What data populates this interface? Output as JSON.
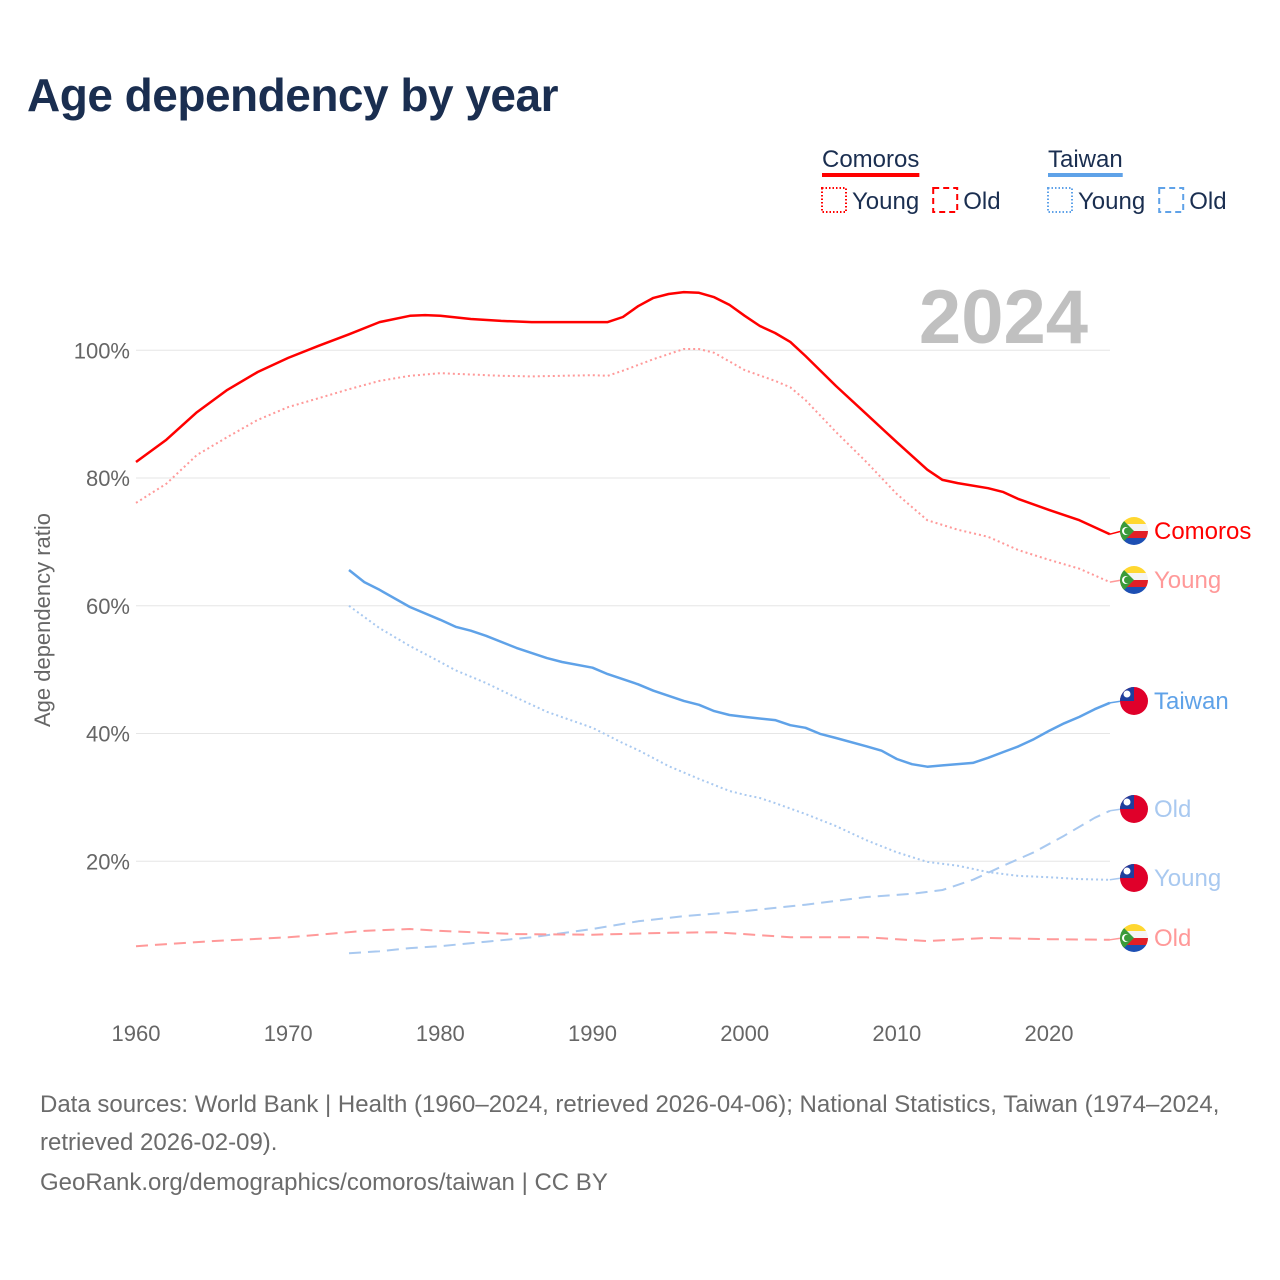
{
  "title": "Age dependency by year",
  "year_watermark": "2024",
  "legend": {
    "groups": [
      {
        "name": "Comoros",
        "color": "#ff0000",
        "light": "#ff9999",
        "items": [
          "Young",
          "Old"
        ]
      },
      {
        "name": "Taiwan",
        "color": "#5fa2e8",
        "light": "#a9c9f0",
        "items": [
          "Young",
          "Old"
        ]
      }
    ]
  },
  "chart_data": {
    "type": "line",
    "title": "Age dependency by year",
    "xlabel": "",
    "ylabel": "Age dependency ratio",
    "xlim": [
      1960,
      2024
    ],
    "ylim": [
      0,
      110
    ],
    "x_ticks": [
      "1960",
      "1970",
      "1980",
      "1990",
      "2000",
      "2010",
      "2020"
    ],
    "y_ticks": [
      {
        "v": 20,
        "label": "20%"
      },
      {
        "v": 40,
        "label": "40%"
      },
      {
        "v": 60,
        "label": "60%"
      },
      {
        "v": 80,
        "label": "80%"
      },
      {
        "v": 100,
        "label": "100%"
      }
    ],
    "grid": true,
    "series": [
      {
        "name": "Comoros",
        "end_label": "Comoros",
        "country": "comoros",
        "style": "solid",
        "color": "#ff0000",
        "points": [
          [
            1960,
            82.5
          ],
          [
            1962,
            86
          ],
          [
            1964,
            90.3
          ],
          [
            1966,
            93.8
          ],
          [
            1968,
            96.6
          ],
          [
            1970,
            98.8
          ],
          [
            1972,
            100.7
          ],
          [
            1974,
            102.5
          ],
          [
            1976,
            104.4
          ],
          [
            1978,
            105.4
          ],
          [
            1979,
            105.5
          ],
          [
            1980,
            105.4
          ],
          [
            1982,
            104.9
          ],
          [
            1984,
            104.6
          ],
          [
            1986,
            104.4
          ],
          [
            1991,
            104.4
          ],
          [
            1992,
            105.2
          ],
          [
            1993,
            106.9
          ],
          [
            1994,
            108.2
          ],
          [
            1995,
            108.8
          ],
          [
            1996,
            109.1
          ],
          [
            1997,
            109
          ],
          [
            1998,
            108.3
          ],
          [
            1999,
            107.1
          ],
          [
            2000,
            105.4
          ],
          [
            2001,
            103.8
          ],
          [
            2002,
            102.7
          ],
          [
            2003,
            101.3
          ],
          [
            2004,
            99.1
          ],
          [
            2006,
            94.4
          ],
          [
            2008,
            90.0
          ],
          [
            2010,
            85.6
          ],
          [
            2012,
            81.3
          ],
          [
            2013,
            79.7
          ],
          [
            2014,
            79.2
          ],
          [
            2016,
            78.4
          ],
          [
            2017,
            77.8
          ],
          [
            2018,
            76.7
          ],
          [
            2020,
            75.0
          ],
          [
            2022,
            73.4
          ],
          [
            2024,
            71.2
          ]
        ]
      },
      {
        "name": "Comoros Young",
        "end_label": "Young",
        "country": "comoros",
        "style": "dotted",
        "color": "#ff9999",
        "points": [
          [
            1960,
            76.1
          ],
          [
            1962,
            79.1
          ],
          [
            1964,
            83.6
          ],
          [
            1966,
            86.4
          ],
          [
            1968,
            89.1
          ],
          [
            1970,
            91.1
          ],
          [
            1972,
            92.5
          ],
          [
            1974,
            93.9
          ],
          [
            1976,
            95.2
          ],
          [
            1978,
            96.0
          ],
          [
            1980,
            96.4
          ],
          [
            1984,
            96.0
          ],
          [
            1986,
            95.9
          ],
          [
            1990,
            96.1
          ],
          [
            1991,
            96.0
          ],
          [
            1992,
            96.8
          ],
          [
            1994,
            98.6
          ],
          [
            1996,
            100.2
          ],
          [
            1997,
            100.2
          ],
          [
            1998,
            99.6
          ],
          [
            2000,
            96.9
          ],
          [
            2002,
            95.2
          ],
          [
            2003,
            94.2
          ],
          [
            2004,
            92.2
          ],
          [
            2006,
            87.2
          ],
          [
            2008,
            82.5
          ],
          [
            2010,
            77.5
          ],
          [
            2012,
            73.4
          ],
          [
            2014,
            71.9
          ],
          [
            2016,
            70.8
          ],
          [
            2018,
            68.7
          ],
          [
            2020,
            67.2
          ],
          [
            2022,
            65.8
          ],
          [
            2024,
            63.7
          ]
        ]
      },
      {
        "name": "Taiwan",
        "end_label": "Taiwan",
        "country": "taiwan",
        "style": "solid",
        "color": "#5fa2e8",
        "points": [
          [
            1974,
            65.6
          ],
          [
            1975,
            63.7
          ],
          [
            1976,
            62.5
          ],
          [
            1978,
            59.8
          ],
          [
            1980,
            57.8
          ],
          [
            1981,
            56.7
          ],
          [
            1982,
            56.1
          ],
          [
            1983,
            55.3
          ],
          [
            1985,
            53.4
          ],
          [
            1987,
            51.8
          ],
          [
            1988,
            51.2
          ],
          [
            1990,
            50.3
          ],
          [
            1991,
            49.3
          ],
          [
            1993,
            47.7
          ],
          [
            1994,
            46.7
          ],
          [
            1996,
            45.1
          ],
          [
            1997,
            44.5
          ],
          [
            1998,
            43.5
          ],
          [
            1999,
            42.9
          ],
          [
            2000,
            42.6
          ],
          [
            2002,
            42.1
          ],
          [
            2003,
            41.3
          ],
          [
            2004,
            40.9
          ],
          [
            2005,
            39.9
          ],
          [
            2006,
            39.3
          ],
          [
            2008,
            38.0
          ],
          [
            2009,
            37.3
          ],
          [
            2010,
            36.0
          ],
          [
            2011,
            35.2
          ],
          [
            2012,
            34.8
          ],
          [
            2013,
            35.0
          ],
          [
            2015,
            35.4
          ],
          [
            2016,
            36.2
          ],
          [
            2017,
            37.1
          ],
          [
            2018,
            38.0
          ],
          [
            2019,
            39.1
          ],
          [
            2020,
            40.4
          ],
          [
            2021,
            41.6
          ],
          [
            2022,
            42.6
          ],
          [
            2023,
            43.8
          ],
          [
            2024,
            44.8
          ]
        ]
      },
      {
        "name": "Taiwan Old",
        "end_label": "Old",
        "country": "taiwan",
        "style": "dashed",
        "color": "#a9c9f0",
        "points": [
          [
            1974,
            5.6
          ],
          [
            1976,
            5.9
          ],
          [
            1978,
            6.4
          ],
          [
            1980,
            6.7
          ],
          [
            1983,
            7.4
          ],
          [
            1986,
            8.1
          ],
          [
            1990,
            9.4
          ],
          [
            1993,
            10.6
          ],
          [
            1996,
            11.4
          ],
          [
            2000,
            12.2
          ],
          [
            2004,
            13.2
          ],
          [
            2008,
            14.4
          ],
          [
            2011,
            14.9
          ],
          [
            2013,
            15.5
          ],
          [
            2015,
            17.1
          ],
          [
            2017,
            19.3
          ],
          [
            2019,
            21.4
          ],
          [
            2021,
            24.0
          ],
          [
            2023,
            26.8
          ],
          [
            2024,
            27.9
          ]
        ]
      },
      {
        "name": "Taiwan Young",
        "end_label": "Young",
        "country": "taiwan",
        "style": "dotted",
        "color": "#a9c9f0",
        "points": [
          [
            1974,
            60.0
          ],
          [
            1976,
            56.5
          ],
          [
            1978,
            53.7
          ],
          [
            1980,
            51.2
          ],
          [
            1981,
            49.9
          ],
          [
            1983,
            47.9
          ],
          [
            1985,
            45.6
          ],
          [
            1987,
            43.4
          ],
          [
            1990,
            40.9
          ],
          [
            1992,
            38.5
          ],
          [
            1993,
            37.4
          ],
          [
            1995,
            34.9
          ],
          [
            1997,
            32.9
          ],
          [
            1999,
            31.0
          ],
          [
            2000,
            30.4
          ],
          [
            2001,
            29.9
          ],
          [
            2002,
            29.1
          ],
          [
            2004,
            27.4
          ],
          [
            2006,
            25.5
          ],
          [
            2008,
            23.3
          ],
          [
            2010,
            21.4
          ],
          [
            2012,
            19.9
          ],
          [
            2014,
            19.3
          ],
          [
            2016,
            18.3
          ],
          [
            2018,
            17.7
          ],
          [
            2020,
            17.5
          ],
          [
            2022,
            17.2
          ],
          [
            2024,
            17.1
          ]
        ]
      },
      {
        "name": "Comoros Old",
        "end_label": "Old",
        "country": "comoros",
        "style": "dashed",
        "color": "#ff9999",
        "points": [
          [
            1960,
            6.7
          ],
          [
            1965,
            7.5
          ],
          [
            1970,
            8.1
          ],
          [
            1975,
            9.1
          ],
          [
            1978,
            9.4
          ],
          [
            1980,
            9.1
          ],
          [
            1985,
            8.6
          ],
          [
            1990,
            8.5
          ],
          [
            1995,
            8.8
          ],
          [
            1998,
            8.9
          ],
          [
            2000,
            8.6
          ],
          [
            2003,
            8.1
          ],
          [
            2008,
            8.1
          ],
          [
            2012,
            7.5
          ],
          [
            2016,
            8.0
          ],
          [
            2020,
            7.8
          ],
          [
            2024,
            7.7
          ]
        ]
      }
    ]
  },
  "sources": {
    "line1": "Data sources: World Bank | Health (1960–2024, retrieved 2026-04-06); National Statistics, Taiwan (1974–2024, retrieved 2026-02-09).",
    "line2": "GeoRank.org/demographics/comoros/taiwan | CC BY"
  }
}
